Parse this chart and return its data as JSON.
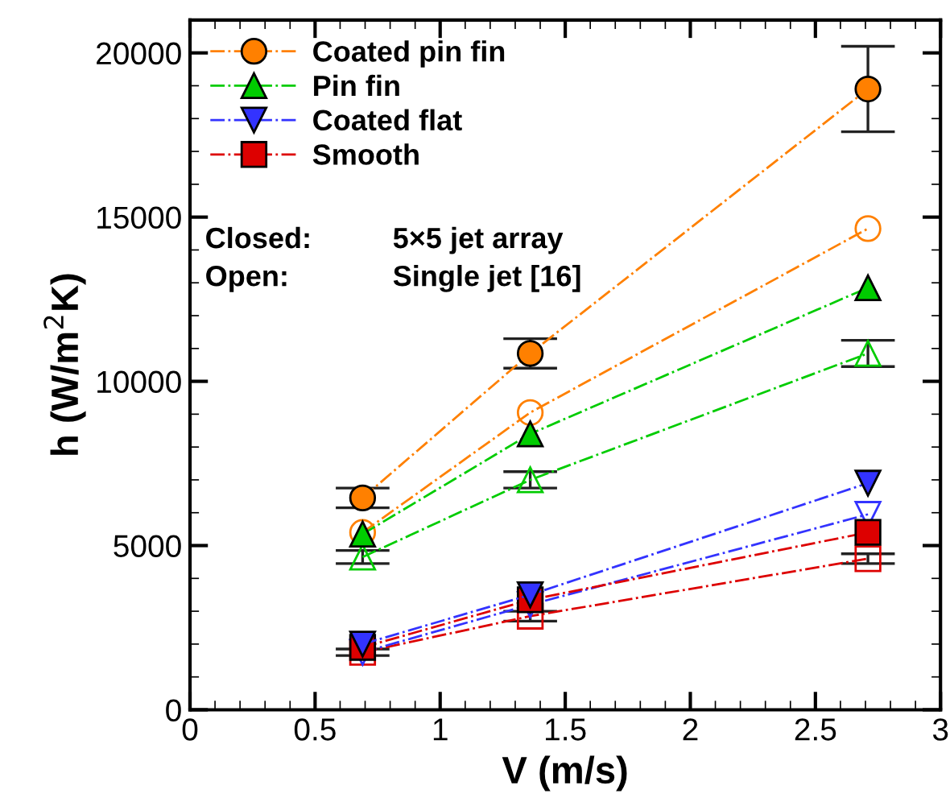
{
  "chart_data": {
    "type": "line",
    "xlabel": "V (m/s)",
    "ylabel": "h (W/m$^{2}$K)",
    "xlim": [
      0,
      3
    ],
    "ylim": [
      0,
      21000
    ],
    "xticks": [
      0,
      0.5,
      1,
      1.5,
      2,
      2.5,
      3
    ],
    "yticks": [
      0,
      5000,
      10000,
      15000,
      20000
    ],
    "grid": false,
    "legend": "top left",
    "line_style": "dashdot",
    "annotations": [
      "Closed:",
      "5×5 jet array",
      "Open:",
      "Single jet [16]"
    ],
    "series": [
      {
        "name": "Coated pin fin",
        "color": "#ff8000",
        "marker": "circle",
        "x": [
          0.69,
          1.36,
          2.71
        ],
        "values": [
          6450,
          10850,
          18900
        ],
        "errors": [
          300,
          450,
          1300
        ]
      },
      {
        "name": "Pin fin",
        "color": "#00cc00",
        "marker": "triangle",
        "x": [
          0.69,
          1.36,
          2.71
        ],
        "values": [
          5350,
          8400,
          12850
        ]
      },
      {
        "name": "Coated flat",
        "color": "#3333ff",
        "marker": "triangle_down",
        "x": [
          0.69,
          1.36,
          2.71
        ],
        "values": [
          2000,
          3500,
          6900
        ]
      },
      {
        "name": "Smooth",
        "color": "#dd0000",
        "marker": "square",
        "x": [
          0.69,
          1.36,
          2.71
        ],
        "values": [
          1900,
          3350,
          5400
        ]
      },
      {
        "color": "#ff8000",
        "marker": "circle",
        "x": [
          0.69,
          1.36,
          2.71
        ],
        "values": [
          5400,
          9050,
          14650
        ]
      },
      {
        "color": "#00cc00",
        "marker": "triangle",
        "x": [
          0.69,
          1.36,
          2.71
        ],
        "values": [
          4650,
          7000,
          10850
        ],
        "errors": [
          200,
          250,
          400
        ]
      },
      {
        "color": "#3333ff",
        "marker": "triangle_down",
        "x": [
          0.69,
          1.36,
          2.71
        ],
        "values": [
          1750,
          3200,
          5950
        ]
      },
      {
        "color": "#dd0000",
        "marker": "square",
        "x": [
          0.69,
          1.36,
          2.71
        ],
        "values": [
          1750,
          2850,
          4600
        ],
        "errors": [
          100,
          150,
          150
        ]
      }
    ]
  }
}
